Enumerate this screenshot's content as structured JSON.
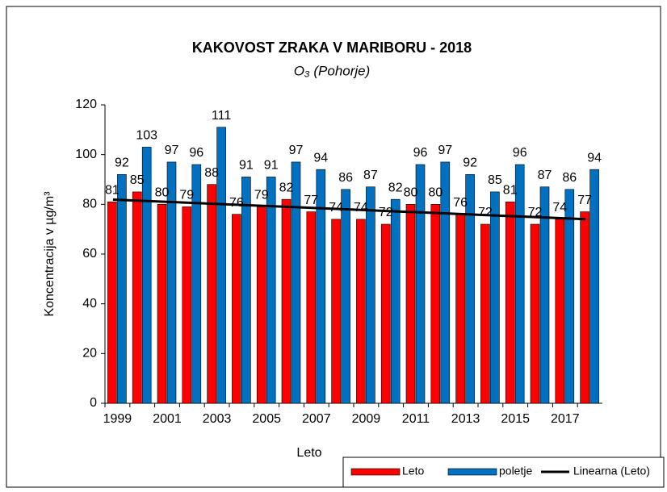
{
  "chart_data": {
    "type": "bar",
    "title": "KAKOVOST ZRAKA V MARIBORU - 2018",
    "subtitle": "O₃ (Pohorje)",
    "x_label": "Leto",
    "y_label": "Koncentracija v µg/m³",
    "categories": [
      "1999",
      null,
      "2001",
      null,
      "2003",
      null,
      "2005",
      null,
      "2007",
      null,
      "2009",
      null,
      "2011",
      null,
      "2013",
      null,
      "2015",
      null,
      "2017",
      null
    ],
    "series": [
      {
        "name": "Leto",
        "color": "#ff0000",
        "values": [
          81,
          85,
          80,
          79,
          88,
          76,
          79,
          82,
          77,
          74,
          74,
          72,
          80,
          80,
          76,
          72,
          81,
          72,
          74,
          77
        ]
      },
      {
        "name": "poletje",
        "color": "#0070c0",
        "values": [
          92,
          103,
          97,
          96,
          111,
          91,
          91,
          97,
          94,
          86,
          87,
          82,
          96,
          97,
          92,
          85,
          96,
          87,
          86,
          94
        ]
      }
    ],
    "trendline": {
      "name": "Linearna (Leto)",
      "color": "#000000"
    },
    "ylim": [
      0,
      120
    ],
    "yticks": [
      0,
      20,
      40,
      60,
      80,
      100,
      120
    ],
    "legend": "bottom-right"
  }
}
